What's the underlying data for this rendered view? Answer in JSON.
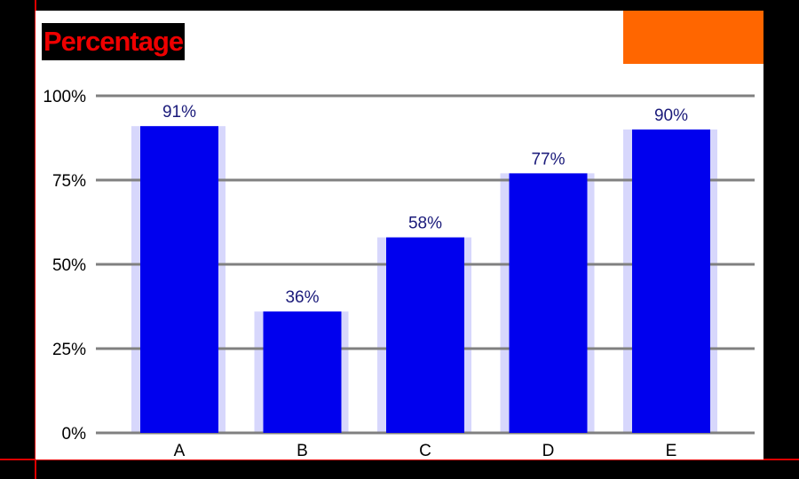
{
  "chart_data": {
    "type": "bar",
    "title": "Percentage",
    "categories": [
      "A",
      "B",
      "C",
      "D",
      "E"
    ],
    "values": [
      91,
      36,
      58,
      77,
      90
    ],
    "data_labels": [
      "91%",
      "36%",
      "58%",
      "77%",
      "90%"
    ],
    "y_ticks": [
      "0%",
      "25%",
      "50%",
      "75%",
      "100%"
    ],
    "ylim": [
      0,
      100
    ],
    "xlabel": "",
    "ylabel": "",
    "grid": true,
    "legend_position": "top-right",
    "colors": {
      "bar": "#0000ee",
      "shadow": "#8c8cf5",
      "title": "#ee0000",
      "legend": "#ff6600",
      "axis": "#dd0000",
      "grid": "#808080"
    }
  }
}
